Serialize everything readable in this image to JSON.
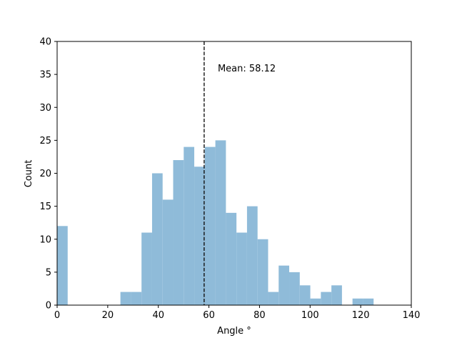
{
  "chart_data": {
    "type": "bar",
    "subtype": "histogram",
    "xlabel": "Angle °",
    "ylabel": "Count",
    "xlim": [
      0,
      140
    ],
    "ylim": [
      0,
      40
    ],
    "xticks": [
      0,
      20,
      40,
      60,
      80,
      100,
      120,
      140
    ],
    "yticks": [
      0,
      5,
      10,
      15,
      20,
      25,
      30,
      35,
      40
    ],
    "bar_color": "#8fbbd9",
    "bin_width": 4.17,
    "bins": [
      {
        "x0": 0.0,
        "x1": 4.17,
        "count": 12
      },
      {
        "x0": 25.02,
        "x1": 29.19,
        "count": 2
      },
      {
        "x0": 29.19,
        "x1": 33.36,
        "count": 2
      },
      {
        "x0": 33.36,
        "x1": 37.53,
        "count": 11
      },
      {
        "x0": 37.53,
        "x1": 41.7,
        "count": 20
      },
      {
        "x0": 41.7,
        "x1": 45.87,
        "count": 16
      },
      {
        "x0": 45.87,
        "x1": 50.04,
        "count": 22
      },
      {
        "x0": 50.04,
        "x1": 54.21,
        "count": 24
      },
      {
        "x0": 54.21,
        "x1": 58.38,
        "count": 21
      },
      {
        "x0": 58.38,
        "x1": 62.55,
        "count": 24
      },
      {
        "x0": 62.55,
        "x1": 66.72,
        "count": 25
      },
      {
        "x0": 66.72,
        "x1": 70.89,
        "count": 14
      },
      {
        "x0": 70.89,
        "x1": 75.06,
        "count": 11
      },
      {
        "x0": 75.06,
        "x1": 79.23,
        "count": 15
      },
      {
        "x0": 79.23,
        "x1": 83.4,
        "count": 10
      },
      {
        "x0": 83.4,
        "x1": 87.57,
        "count": 2
      },
      {
        "x0": 87.57,
        "x1": 91.74,
        "count": 6
      },
      {
        "x0": 91.74,
        "x1": 95.91,
        "count": 5
      },
      {
        "x0": 95.91,
        "x1": 100.08,
        "count": 3
      },
      {
        "x0": 100.08,
        "x1": 104.25,
        "count": 1
      },
      {
        "x0": 104.25,
        "x1": 108.42,
        "count": 2
      },
      {
        "x0": 108.42,
        "x1": 112.59,
        "count": 3
      },
      {
        "x0": 116.76,
        "x1": 120.93,
        "count": 1
      },
      {
        "x0": 120.93,
        "x1": 125.1,
        "count": 1
      }
    ],
    "mean_line": {
      "value": 58.12,
      "style": "dashed",
      "color": "#000000"
    },
    "annotation": {
      "text": "Mean: 58.12",
      "x": 63.5,
      "y": 36
    }
  }
}
